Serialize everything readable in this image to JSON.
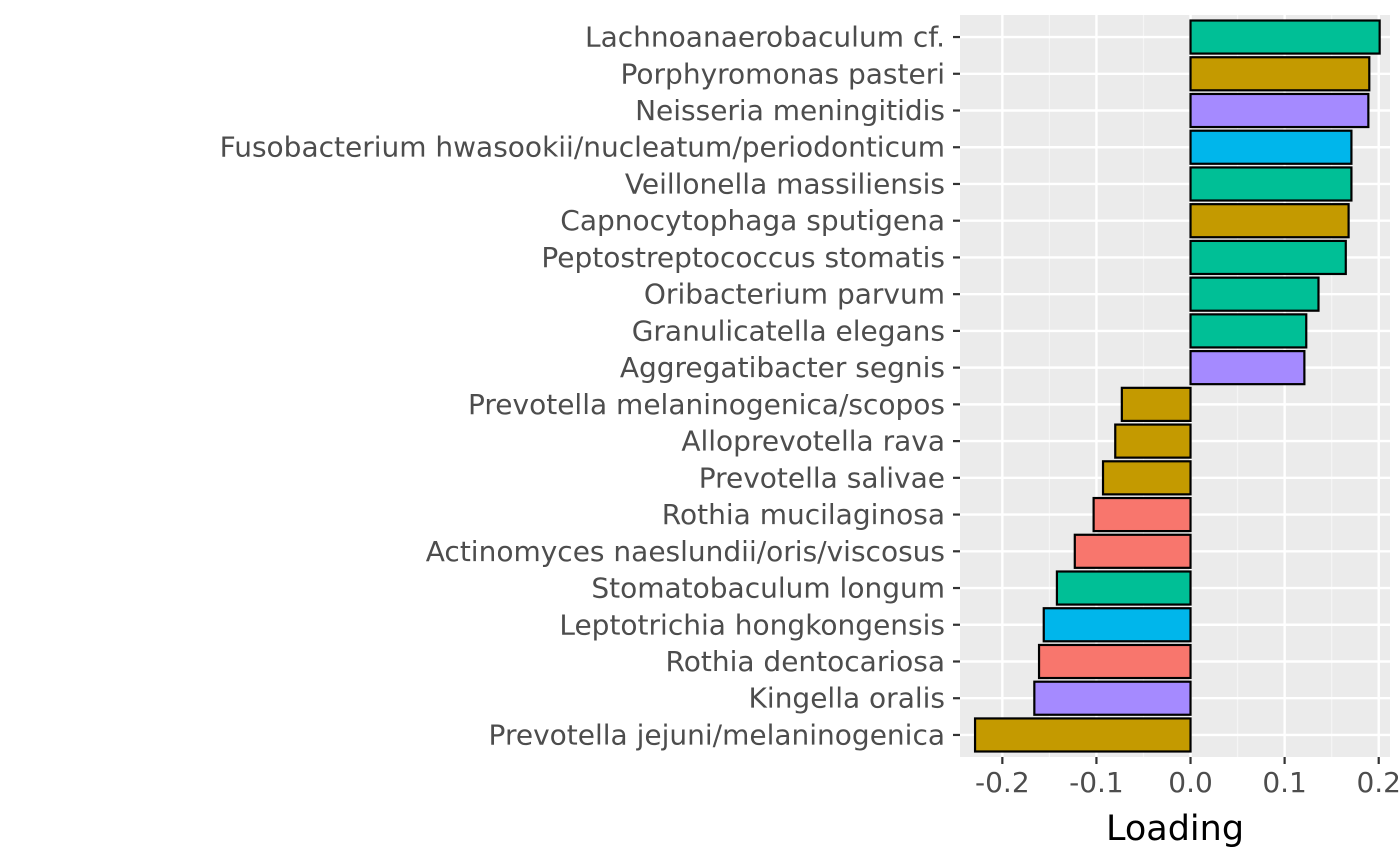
{
  "chart_data": {
    "type": "bar",
    "orientation": "horizontal",
    "title": "",
    "xlabel": "Loading",
    "ylabel": "",
    "xlim": [
      -0.245,
      0.212
    ],
    "xticks": [
      -0.2,
      -0.1,
      0.0,
      0.1,
      0.2
    ],
    "xtick_labels": [
      "-0.2",
      "-0.1",
      "0.0",
      "0.1",
      "0.2"
    ],
    "grid": true,
    "legend": "none",
    "categories": [
      "Lachnoanaerobaculum cf.",
      "Porphyromonas pasteri",
      "Neisseria meningitidis",
      "Fusobacterium hwasookii/nucleatum/periodonticum",
      "Veillonella massiliensis",
      "Capnocytophaga sputigena",
      "Peptostreptococcus stomatis",
      "Oribacterium parvum",
      "Granulicatella elegans",
      "Aggregatibacter segnis",
      "Prevotella melaninogenica/scopos",
      "Alloprevotella rava",
      "Prevotella salivae",
      "Rothia mucilaginosa",
      "Actinomyces naeslundii/oris/viscosus",
      "Stomatobaculum longum",
      "Leptotrichia hongkongensis",
      "Rothia dentocariosa",
      "Kingella oralis",
      "Prevotella jejuni/melaninogenica"
    ],
    "values": [
      0.201,
      0.19,
      0.189,
      0.171,
      0.171,
      0.168,
      0.165,
      0.136,
      0.123,
      0.121,
      -0.073,
      -0.08,
      -0.093,
      -0.103,
      -0.123,
      -0.142,
      -0.156,
      -0.161,
      -0.166,
      -0.229
    ],
    "fill_colors": [
      "#00BF96",
      "#C49A00",
      "#A58AFF",
      "#00B6EB",
      "#00BF96",
      "#C49A00",
      "#00BF96",
      "#00BF96",
      "#00BF96",
      "#A58AFF",
      "#C49A00",
      "#C49A00",
      "#C49A00",
      "#F8766D",
      "#F8766D",
      "#00BF96",
      "#00B6EB",
      "#F8766D",
      "#A58AFF",
      "#C49A00"
    ],
    "colors": {
      "panel_background": "#EBEBEB",
      "grid_major": "#FFFFFF",
      "grid_minor": "#F5F5F5",
      "bar_outline": "#000000",
      "tick_text": "#4D4D4D",
      "tick_mark": "#333333"
    }
  }
}
